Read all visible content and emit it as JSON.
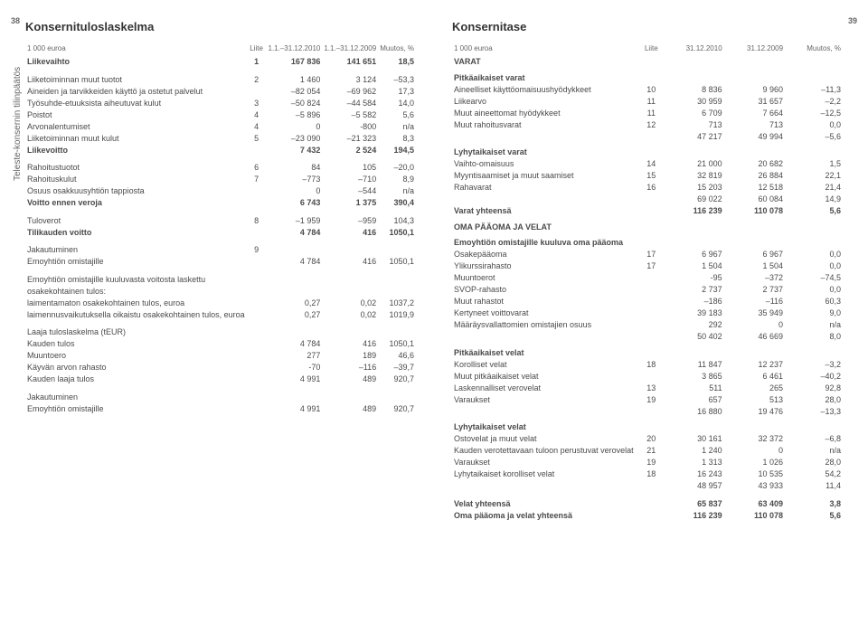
{
  "page": {
    "left_num": "38",
    "right_num": "39"
  },
  "sidelabel": "Teleste-konsernin tilinpäätös",
  "left": {
    "title": "Konsernituloslaskelma",
    "headers": [
      "1 000 euroa",
      "Liite",
      "1.1.–31.12.2010",
      "1.1.–31.12.2009",
      "Muutos, %"
    ],
    "rows": [
      {
        "t": "bold",
        "c": [
          "Liikevaihto",
          "1",
          "167 836",
          "141 651",
          "18,5"
        ]
      },
      {
        "t": "gap",
        "c": [
          "Liiketoiminnan muut tuotot",
          "2",
          "1 460",
          "3 124",
          "–53,3"
        ]
      },
      {
        "t": "",
        "c": [
          "Aineiden ja tarvikkeiden käyttö ja ostetut palvelut",
          "",
          "–82 054",
          "–69 962",
          "17,3"
        ]
      },
      {
        "t": "",
        "c": [
          "Työsuhde-etuuksista aiheutuvat kulut",
          "3",
          "–50 824",
          "–44 584",
          "14,0"
        ]
      },
      {
        "t": "",
        "c": [
          "Poistot",
          "4",
          "–5 896",
          "–5 582",
          "5,6"
        ]
      },
      {
        "t": "",
        "c": [
          "Arvonalentumiset",
          "4",
          "0",
          "-800",
          "n/a"
        ]
      },
      {
        "t": "",
        "c": [
          "Liiketoiminnan muut kulut",
          "5",
          "–23 090",
          "–21 323",
          "8,3"
        ]
      },
      {
        "t": "bold",
        "c": [
          "Liikevoitto",
          "",
          "7 432",
          "2 524",
          "194,5"
        ]
      },
      {
        "t": "gap",
        "c": [
          "Rahoitustuotot",
          "6",
          "84",
          "105",
          "–20,0"
        ]
      },
      {
        "t": "",
        "c": [
          "Rahoituskulut",
          "7",
          "–773",
          "–710",
          "8,9"
        ]
      },
      {
        "t": "",
        "c": [
          "Osuus osakkuusyhtiön tappiosta",
          "",
          "0",
          "–544",
          "n/a"
        ]
      },
      {
        "t": "bold",
        "c": [
          "Voitto ennen veroja",
          "",
          "6 743",
          "1 375",
          "390,4"
        ]
      },
      {
        "t": "gap",
        "c": [
          "Tuloverot",
          "8",
          "–1 959",
          "–959",
          "104,3"
        ]
      },
      {
        "t": "bold",
        "c": [
          "Tilikauden voitto",
          "",
          "4 784",
          "416",
          "1050,1"
        ]
      },
      {
        "t": "gap",
        "c": [
          "Jakautuminen",
          "9",
          "",
          "",
          ""
        ]
      },
      {
        "t": "",
        "c": [
          "Emoyhtiön omistajille",
          "",
          "4 784",
          "416",
          "1050,1"
        ]
      },
      {
        "t": "gap",
        "c": [
          "Emoyhtiön omistajille kuuluvasta voitosta laskettu",
          "",
          "",
          "",
          ""
        ]
      },
      {
        "t": "",
        "c": [
          "osakekohtainen tulos:",
          "",
          "",
          "",
          ""
        ]
      },
      {
        "t": "",
        "c": [
          "laimentamaton osakekohtainen tulos, euroa",
          "",
          "0,27",
          "0,02",
          "1037,2"
        ]
      },
      {
        "t": "",
        "c": [
          "laimennusvaikutuksella oikaistu osakekohtainen tulos, euroa",
          "",
          "0,27",
          "0,02",
          "1019,9"
        ]
      },
      {
        "t": "gap",
        "c": [
          "Laaja tuloslaskelma (tEUR)",
          "",
          "",
          "",
          ""
        ]
      },
      {
        "t": "",
        "c": [
          "  Kauden tulos",
          "",
          "4 784",
          "416",
          "1050,1"
        ]
      },
      {
        "t": "",
        "c": [
          "  Muuntoero",
          "",
          "277",
          "189",
          "46,6"
        ]
      },
      {
        "t": "",
        "c": [
          "  Käyvän arvon rahasto",
          "",
          "-70",
          "–116",
          "–39,7"
        ]
      },
      {
        "t": "",
        "c": [
          "  Kauden laaja tulos",
          "",
          "4 991",
          "489",
          "920,7"
        ]
      },
      {
        "t": "gap",
        "c": [
          "Jakautuminen",
          "",
          "",
          "",
          ""
        ]
      },
      {
        "t": "",
        "c": [
          "Emoyhtiön omistajille",
          "",
          "4 991",
          "489",
          "920,7"
        ]
      }
    ]
  },
  "right": {
    "title": "Konsernitase",
    "headers": [
      "1 000 euroa",
      "Liite",
      "31.12.2010",
      "31.12.2009",
      "Muutos, %"
    ],
    "rows": [
      {
        "t": "bold",
        "c": [
          "VARAT",
          "",
          "",
          "",
          ""
        ]
      },
      {
        "t": "sub",
        "c": [
          "Pitkäaikaiset varat",
          "",
          "",
          "",
          ""
        ]
      },
      {
        "t": "",
        "c": [
          "Aineelliset käyttöomaisuushyödykkeet",
          "10",
          "8 836",
          "9 960",
          "–11,3"
        ]
      },
      {
        "t": "",
        "c": [
          "Liikearvo",
          "11",
          "30 959",
          "31 657",
          "–2,2"
        ]
      },
      {
        "t": "",
        "c": [
          "Muut aineettomat hyödykkeet",
          "11",
          "6 709",
          "7 664",
          "–12,5"
        ]
      },
      {
        "t": "",
        "c": [
          "Muut rahoitusvarat",
          "12",
          "713",
          "713",
          "0,0"
        ]
      },
      {
        "t": "",
        "c": [
          "",
          "",
          "47 217",
          "49 994",
          "–5,6"
        ]
      },
      {
        "t": "sub",
        "c": [
          "Lyhytaikaiset varat",
          "",
          "",
          "",
          ""
        ]
      },
      {
        "t": "",
        "c": [
          "Vaihto-omaisuus",
          "14",
          "21 000",
          "20 682",
          "1,5"
        ]
      },
      {
        "t": "",
        "c": [
          "Myyntisaamiset ja muut saamiset",
          "15",
          "32 819",
          "26 884",
          "22,1"
        ]
      },
      {
        "t": "",
        "c": [
          "Rahavarat",
          "16",
          "15 203",
          "12 518",
          "21,4"
        ]
      },
      {
        "t": "",
        "c": [
          "",
          "",
          "69 022",
          "60 084",
          "14,9"
        ]
      },
      {
        "t": "bold",
        "c": [
          "Varat yhteensä",
          "",
          "116 239",
          "110 078",
          "5,6"
        ]
      },
      {
        "t": "sub",
        "c": [
          "OMA PÄÄOMA JA VELAT",
          "",
          "",
          "",
          ""
        ]
      },
      {
        "t": "sub",
        "c": [
          "Emoyhtiön omistajille kuuluva oma pääoma",
          "",
          "",
          "",
          ""
        ]
      },
      {
        "t": "",
        "c": [
          "Osakepääoma",
          "17",
          "6 967",
          "6 967",
          "0,0"
        ]
      },
      {
        "t": "",
        "c": [
          "Ylikurssirahasto",
          "17",
          "1 504",
          "1 504",
          "0,0"
        ]
      },
      {
        "t": "",
        "c": [
          "Muuntoerot",
          "",
          "-95",
          "–372",
          "–74,5"
        ]
      },
      {
        "t": "",
        "c": [
          "SVOP-rahasto",
          "",
          "2 737",
          "2 737",
          "0,0"
        ]
      },
      {
        "t": "",
        "c": [
          "Muut rahastot",
          "",
          "–186",
          "–116",
          "60,3"
        ]
      },
      {
        "t": "",
        "c": [
          "Kertyneet voittovarat",
          "",
          "39 183",
          "35 949",
          "9,0"
        ]
      },
      {
        "t": "",
        "c": [
          "Määräysvallattomien omistajien osuus",
          "",
          "292",
          "0",
          "n/a"
        ]
      },
      {
        "t": "",
        "c": [
          "",
          "",
          "50 402",
          "46 669",
          "8,0"
        ]
      },
      {
        "t": "sub",
        "c": [
          "Pitkäaikaiset velat",
          "",
          "",
          "",
          ""
        ]
      },
      {
        "t": "",
        "c": [
          "Korolliset velat",
          "18",
          "11 847",
          "12 237",
          "–3,2"
        ]
      },
      {
        "t": "",
        "c": [
          "Muut pitkäaikaiset velat",
          "",
          "3 865",
          "6 461",
          "–40,2"
        ]
      },
      {
        "t": "",
        "c": [
          "Laskennalliset verovelat",
          "13",
          "511",
          "265",
          "92,8"
        ]
      },
      {
        "t": "",
        "c": [
          "Varaukset",
          "19",
          "657",
          "513",
          "28,0"
        ]
      },
      {
        "t": "",
        "c": [
          "",
          "",
          "16 880",
          "19 476",
          "–13,3"
        ]
      },
      {
        "t": "sub",
        "c": [
          "Lyhytaikaiset velat",
          "",
          "",
          "",
          ""
        ]
      },
      {
        "t": "",
        "c": [
          "Ostovelat ja muut velat",
          "20",
          "30 161",
          "32 372",
          "–6,8"
        ]
      },
      {
        "t": "",
        "c": [
          "Kauden verotettavaan tuloon perustuvat verovelat",
          "21",
          "1 240",
          "0",
          "n/a"
        ]
      },
      {
        "t": "",
        "c": [
          "Varaukset",
          "19",
          "1 313",
          "1 026",
          "28,0"
        ]
      },
      {
        "t": "",
        "c": [
          "Lyhytaikaiset korolliset velat",
          "18",
          "16 243",
          "10 535",
          "54,2"
        ]
      },
      {
        "t": "",
        "c": [
          "",
          "",
          "48 957",
          "43 933",
          "11,4"
        ]
      },
      {
        "t": "bold gap",
        "c": [
          "Velat yhteensä",
          "",
          "65 837",
          "63 409",
          "3,8"
        ]
      },
      {
        "t": "bold",
        "c": [
          "Oma pääoma ja velat yhteensä",
          "",
          "116 239",
          "110 078",
          "5,6"
        ]
      }
    ]
  }
}
